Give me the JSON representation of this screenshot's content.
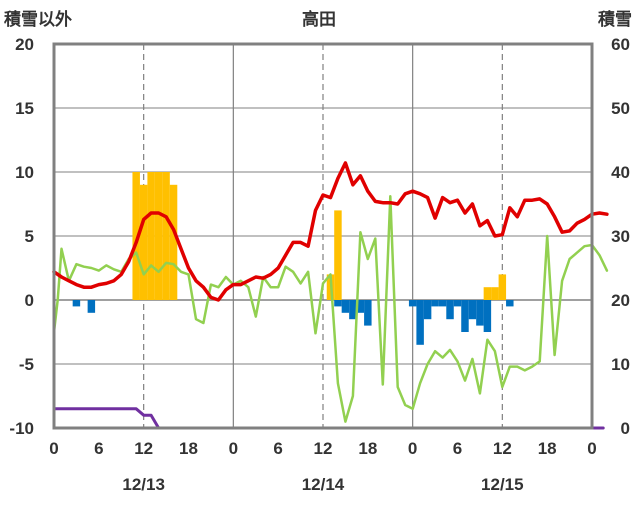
{
  "chart_data": {
    "type": "line",
    "title": "高田",
    "ylabel_left": "積雪以外",
    "ylabel_right": "積雪",
    "y_left": {
      "range": [
        -10,
        20
      ],
      "ticks": [
        20,
        15,
        10,
        5,
        0,
        -5,
        -10
      ],
      "tick_labels": [
        "20",
        "15",
        "10",
        "5",
        "0",
        "-5",
        "-10"
      ]
    },
    "y_right": {
      "range": [
        0,
        60
      ],
      "ticks": [
        60,
        50,
        40,
        30,
        20,
        10,
        0
      ],
      "tick_labels": [
        "60",
        "50",
        "40",
        "30",
        "20",
        "10",
        "0"
      ]
    },
    "x": {
      "range": [
        0,
        72
      ],
      "ticks": [
        0,
        6,
        12,
        18,
        24,
        30,
        36,
        42,
        48,
        54,
        60,
        66,
        72
      ],
      "tick_labels": [
        "0",
        "6",
        "12",
        "18",
        "0",
        "6",
        "12",
        "18",
        "0",
        "6",
        "12",
        "18",
        "0"
      ],
      "day_labels": [
        {
          "at": 12,
          "text": "12/13"
        },
        {
          "at": 36,
          "text": "12/14"
        },
        {
          "at": 60,
          "text": "12/15"
        }
      ],
      "solid_lines": [
        24,
        48
      ],
      "dashed_lines": [
        12,
        36,
        60
      ]
    },
    "colors": {
      "temperature": "#e00000",
      "snow_depth_green": "#92d050",
      "precipitation": "#ffc000",
      "depth_decrease": "#0070c0",
      "purple": "#7030a0",
      "axis": "#808080",
      "grid": "#808080"
    },
    "precipitation": [
      {
        "x": 11,
        "v": 10
      },
      {
        "x": 12,
        "v": 9
      },
      {
        "x": 13,
        "v": 10
      },
      {
        "x": 14,
        "v": 10
      },
      {
        "x": 15,
        "v": 10
      },
      {
        "x": 16,
        "v": 9
      },
      {
        "x": 37,
        "v": 2
      },
      {
        "x": 38,
        "v": 7
      },
      {
        "x": 58,
        "v": 1
      },
      {
        "x": 59,
        "v": 1
      },
      {
        "x": 60,
        "v": 2
      }
    ],
    "depth_decrease": [
      {
        "x": 3,
        "v": -0.5
      },
      {
        "x": 5,
        "v": -1
      },
      {
        "x": 38,
        "v": -0.5
      },
      {
        "x": 39,
        "v": -1
      },
      {
        "x": 40,
        "v": -1.5
      },
      {
        "x": 41,
        "v": -1
      },
      {
        "x": 42,
        "v": -2
      },
      {
        "x": 48,
        "v": -0.5
      },
      {
        "x": 49,
        "v": -3.5
      },
      {
        "x": 50,
        "v": -1.5
      },
      {
        "x": 51,
        "v": -0.5
      },
      {
        "x": 52,
        "v": -0.5
      },
      {
        "x": 53,
        "v": -1.5
      },
      {
        "x": 54,
        "v": -0.5
      },
      {
        "x": 55,
        "v": -2.5
      },
      {
        "x": 56,
        "v": -1.5
      },
      {
        "x": 57,
        "v": -2
      },
      {
        "x": 58,
        "v": -2.5
      },
      {
        "x": 61,
        "v": -0.5
      }
    ],
    "temperature": [
      [
        0,
        2.2
      ],
      [
        1,
        1.8
      ],
      [
        2,
        1.5
      ],
      [
        3,
        1.2
      ],
      [
        4,
        1.0
      ],
      [
        5,
        1.0
      ],
      [
        6,
        1.2
      ],
      [
        7,
        1.3
      ],
      [
        8,
        1.5
      ],
      [
        9,
        2.0
      ],
      [
        10,
        3.0
      ],
      [
        11,
        4.5
      ],
      [
        12,
        6.3
      ],
      [
        13,
        6.8
      ],
      [
        14,
        6.8
      ],
      [
        15,
        6.5
      ],
      [
        16,
        5.5
      ],
      [
        17,
        4.0
      ],
      [
        18,
        2.5
      ],
      [
        19,
        1.5
      ],
      [
        20,
        1.0
      ],
      [
        21,
        0.2
      ],
      [
        22,
        0.0
      ],
      [
        23,
        0.8
      ],
      [
        24,
        1.2
      ],
      [
        25,
        1.2
      ],
      [
        26,
        1.5
      ],
      [
        27,
        1.8
      ],
      [
        28,
        1.7
      ],
      [
        29,
        2.0
      ],
      [
        30,
        2.5
      ],
      [
        31,
        3.5
      ],
      [
        32,
        4.5
      ],
      [
        33,
        4.5
      ],
      [
        34,
        4.2
      ],
      [
        35,
        7.0
      ],
      [
        36,
        8.2
      ],
      [
        37,
        8.0
      ],
      [
        38,
        9.5
      ],
      [
        39,
        10.7
      ],
      [
        40,
        9.0
      ],
      [
        41,
        9.7
      ],
      [
        42,
        8.5
      ],
      [
        43,
        7.7
      ],
      [
        44,
        7.6
      ],
      [
        45,
        7.6
      ],
      [
        46,
        7.5
      ],
      [
        47,
        8.3
      ],
      [
        48,
        8.5
      ],
      [
        49,
        8.3
      ],
      [
        50,
        8.0
      ],
      [
        51,
        6.4
      ],
      [
        52,
        8.0
      ],
      [
        53,
        7.6
      ],
      [
        54,
        7.8
      ],
      [
        55,
        6.8
      ],
      [
        56,
        7.5
      ],
      [
        57,
        5.8
      ],
      [
        58,
        6.2
      ],
      [
        59,
        5.0
      ],
      [
        60,
        5.1
      ],
      [
        61,
        7.2
      ],
      [
        62,
        6.5
      ],
      [
        63,
        7.8
      ],
      [
        64,
        7.8
      ],
      [
        65,
        7.9
      ],
      [
        66,
        7.5
      ],
      [
        67,
        6.5
      ],
      [
        68,
        5.3
      ],
      [
        69,
        5.4
      ],
      [
        70,
        6.0
      ],
      [
        71,
        6.3
      ],
      [
        72,
        6.7
      ],
      [
        73,
        6.8
      ],
      [
        74,
        6.7
      ]
    ],
    "snow_depth": [
      [
        0,
        -2.5
      ],
      [
        0.5,
        0.0
      ],
      [
        1,
        4.0
      ],
      [
        2,
        1.5
      ],
      [
        3,
        2.8
      ],
      [
        4,
        2.6
      ],
      [
        5,
        2.5
      ],
      [
        6,
        2.3
      ],
      [
        7,
        2.7
      ],
      [
        8,
        2.4
      ],
      [
        9,
        2.2
      ],
      [
        10,
        3.2
      ],
      [
        11,
        3.7
      ],
      [
        12,
        2.0
      ],
      [
        13,
        2.7
      ],
      [
        14,
        2.2
      ],
      [
        15,
        2.9
      ],
      [
        16,
        2.8
      ],
      [
        17,
        2.2
      ],
      [
        18,
        2.0
      ],
      [
        19,
        -1.5
      ],
      [
        20,
        -1.8
      ],
      [
        21,
        1.2
      ],
      [
        22,
        1.0
      ],
      [
        23,
        1.8
      ],
      [
        24,
        1.2
      ],
      [
        25,
        1.5
      ],
      [
        26,
        1.0
      ],
      [
        27,
        -1.3
      ],
      [
        28,
        1.8
      ],
      [
        29,
        1.0
      ],
      [
        30,
        1.0
      ],
      [
        31,
        2.6
      ],
      [
        32,
        2.2
      ],
      [
        33,
        1.3
      ],
      [
        34,
        2.2
      ],
      [
        35,
        -2.6
      ],
      [
        36,
        1.3
      ],
      [
        37,
        2.0
      ],
      [
        38,
        -6.5
      ],
      [
        39,
        -9.5
      ],
      [
        40,
        -7.5
      ],
      [
        41,
        5.3
      ],
      [
        42,
        3.2
      ],
      [
        43,
        4.8
      ],
      [
        44,
        -6.6
      ],
      [
        45,
        8.1
      ],
      [
        46,
        -6.8
      ],
      [
        47,
        -8.2
      ],
      [
        48,
        -8.5
      ],
      [
        49,
        -6.5
      ],
      [
        50,
        -5.0
      ],
      [
        51,
        -4.0
      ],
      [
        52,
        -4.5
      ],
      [
        53,
        -3.9
      ],
      [
        54,
        -4.8
      ],
      [
        55,
        -6.3
      ],
      [
        56,
        -4.6
      ],
      [
        57,
        -7.3
      ],
      [
        58,
        -3.1
      ],
      [
        59,
        -4.0
      ],
      [
        60,
        -6.8
      ],
      [
        61,
        -5.2
      ],
      [
        62,
        -5.2
      ],
      [
        63,
        -5.5
      ],
      [
        64,
        -5.2
      ],
      [
        65,
        -4.8
      ],
      [
        66,
        5.0
      ],
      [
        67,
        -4.3
      ],
      [
        68,
        1.5
      ],
      [
        69,
        3.2
      ],
      [
        70,
        3.7
      ],
      [
        71,
        4.2
      ],
      [
        72,
        4.3
      ],
      [
        73,
        3.5
      ],
      [
        74,
        2.3
      ]
    ],
    "purple_line": [
      [
        0,
        -8.5
      ],
      [
        7,
        -8.5
      ],
      [
        8,
        -8.5
      ],
      [
        9,
        -8.5
      ],
      [
        10,
        -8.5
      ],
      [
        11,
        -8.5
      ],
      [
        12,
        -9.0
      ],
      [
        13,
        -9.0
      ],
      [
        14,
        -10.0
      ],
      [
        15,
        -10.0
      ],
      [
        73.5,
        -10.0
      ]
    ]
  }
}
